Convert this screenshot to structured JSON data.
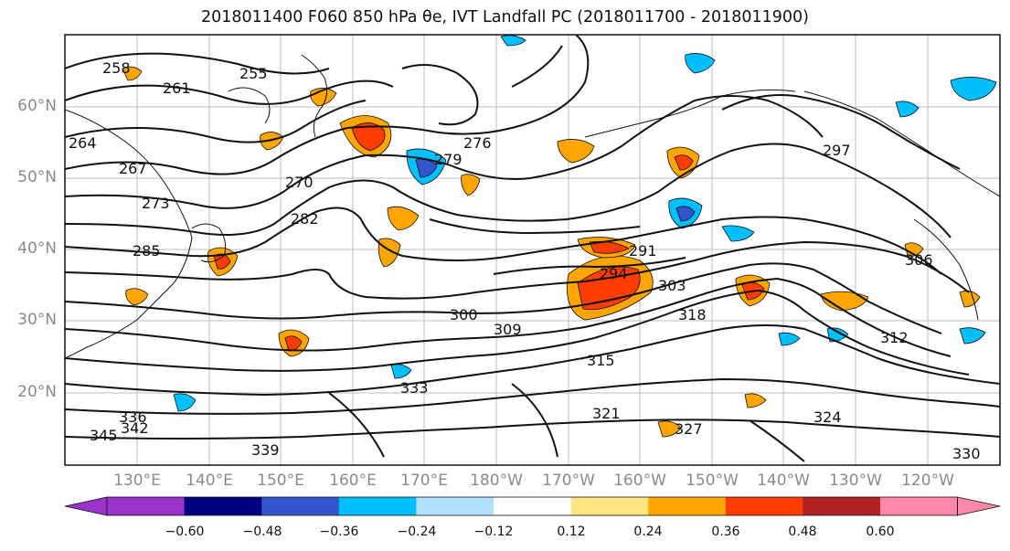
{
  "title": "2018011400 F060 850 hPa θe, IVT Landfall PC (2018011700 - 2018011900)",
  "map": {
    "lat_labels": [
      "60°N",
      "50°N",
      "40°N",
      "30°N",
      "20°N"
    ],
    "lon_labels": [
      "130°E",
      "140°E",
      "150°E",
      "160°E",
      "170°E",
      "180°W",
      "170°W",
      "160°W",
      "150°W",
      "140°W",
      "130°W",
      "120°W"
    ],
    "contour_labels": [
      "255",
      "258",
      "261",
      "264",
      "267",
      "270",
      "273",
      "276",
      "279",
      "282",
      "285",
      "291",
      "294",
      "297",
      "300",
      "303",
      "306",
      "309",
      "312",
      "315",
      "318",
      "321",
      "324",
      "327",
      "330",
      "333",
      "336",
      "339",
      "342",
      "345"
    ],
    "grid": true
  },
  "colorbar": {
    "colors": [
      "#9933cc",
      "#000080",
      "#3355cc",
      "#00bfff",
      "#b0e2ff",
      "#ffffff",
      "#ffe680",
      "#ffa500",
      "#ff3d00",
      "#b22222",
      "#ff88aa"
    ],
    "tick_labels": [
      "−0.60",
      "−0.48",
      "−0.36",
      "−0.24",
      "−0.12",
      "0.12",
      "0.24",
      "0.36",
      "0.48",
      "0.60"
    ]
  }
}
